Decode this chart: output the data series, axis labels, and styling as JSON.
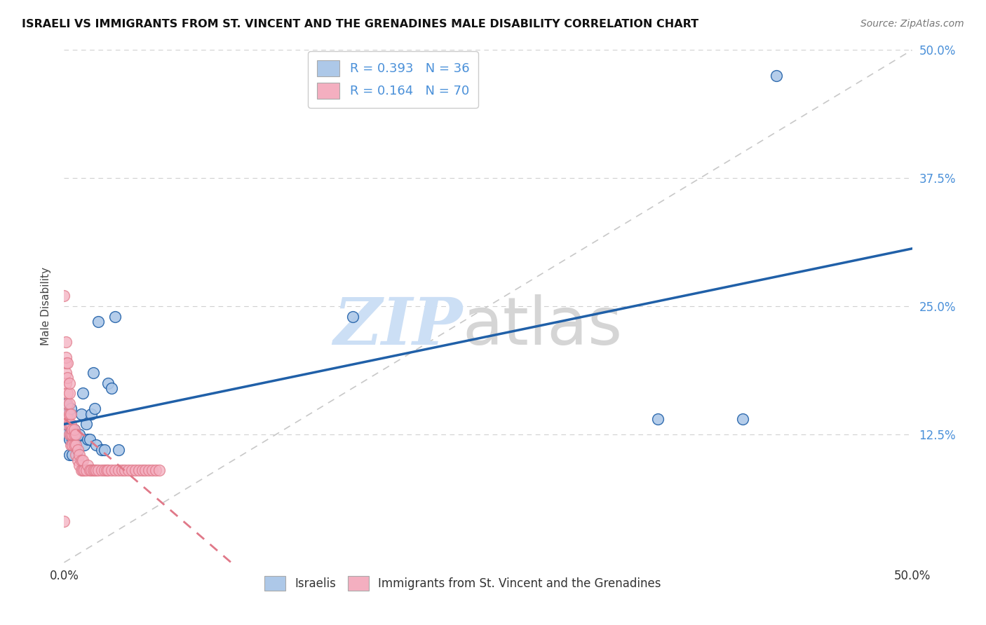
{
  "title": "ISRAELI VS IMMIGRANTS FROM ST. VINCENT AND THE GRENADINES MALE DISABILITY CORRELATION CHART",
  "source": "Source: ZipAtlas.com",
  "ylabel": "Male Disability",
  "xlim": [
    0,
    0.5
  ],
  "ylim": [
    0,
    0.5
  ],
  "legend_R1": "R = 0.393",
  "legend_N1": "N = 36",
  "legend_R2": "R = 0.164",
  "legend_N2": "N = 70",
  "color_israeli": "#adc8e8",
  "color_immigrant": "#f4afc0",
  "color_line_israeli": "#2060a8",
  "color_line_immigrant": "#e07888",
  "background_color": "#ffffff",
  "israelis_x": [
    0.001,
    0.001,
    0.001,
    0.002,
    0.002,
    0.003,
    0.003,
    0.004,
    0.004,
    0.005,
    0.005,
    0.006,
    0.007,
    0.008,
    0.009,
    0.01,
    0.011,
    0.012,
    0.013,
    0.014,
    0.015,
    0.016,
    0.017,
    0.018,
    0.019,
    0.02,
    0.022,
    0.024,
    0.026,
    0.028,
    0.03,
    0.032,
    0.17,
    0.35,
    0.4,
    0.42
  ],
  "israelis_y": [
    0.155,
    0.135,
    0.125,
    0.145,
    0.135,
    0.12,
    0.105,
    0.15,
    0.13,
    0.105,
    0.12,
    0.13,
    0.12,
    0.11,
    0.125,
    0.145,
    0.165,
    0.115,
    0.135,
    0.12,
    0.12,
    0.145,
    0.185,
    0.15,
    0.115,
    0.235,
    0.11,
    0.11,
    0.175,
    0.17,
    0.24,
    0.11,
    0.24,
    0.14,
    0.14,
    0.475
  ],
  "immigrants_x": [
    0.0,
    0.0,
    0.0,
    0.0,
    0.001,
    0.001,
    0.001,
    0.001,
    0.001,
    0.001,
    0.002,
    0.002,
    0.002,
    0.002,
    0.002,
    0.003,
    0.003,
    0.003,
    0.003,
    0.003,
    0.003,
    0.004,
    0.004,
    0.004,
    0.004,
    0.005,
    0.005,
    0.005,
    0.006,
    0.006,
    0.006,
    0.007,
    0.007,
    0.007,
    0.008,
    0.008,
    0.009,
    0.009,
    0.01,
    0.01,
    0.011,
    0.011,
    0.012,
    0.013,
    0.014,
    0.015,
    0.016,
    0.017,
    0.018,
    0.019,
    0.02,
    0.022,
    0.024,
    0.025,
    0.026,
    0.028,
    0.03,
    0.032,
    0.034,
    0.036,
    0.038,
    0.04,
    0.042,
    0.044,
    0.046,
    0.048,
    0.05,
    0.052,
    0.054,
    0.056
  ],
  "immigrants_y": [
    0.04,
    0.135,
    0.145,
    0.26,
    0.14,
    0.175,
    0.185,
    0.195,
    0.2,
    0.215,
    0.14,
    0.155,
    0.165,
    0.18,
    0.195,
    0.125,
    0.135,
    0.145,
    0.155,
    0.165,
    0.175,
    0.115,
    0.125,
    0.135,
    0.145,
    0.115,
    0.125,
    0.13,
    0.115,
    0.125,
    0.13,
    0.105,
    0.115,
    0.125,
    0.1,
    0.11,
    0.095,
    0.105,
    0.09,
    0.1,
    0.09,
    0.1,
    0.09,
    0.09,
    0.095,
    0.09,
    0.09,
    0.09,
    0.09,
    0.09,
    0.09,
    0.09,
    0.09,
    0.09,
    0.09,
    0.09,
    0.09,
    0.09,
    0.09,
    0.09,
    0.09,
    0.09,
    0.09,
    0.09,
    0.09,
    0.09,
    0.09,
    0.09,
    0.09,
    0.09
  ]
}
